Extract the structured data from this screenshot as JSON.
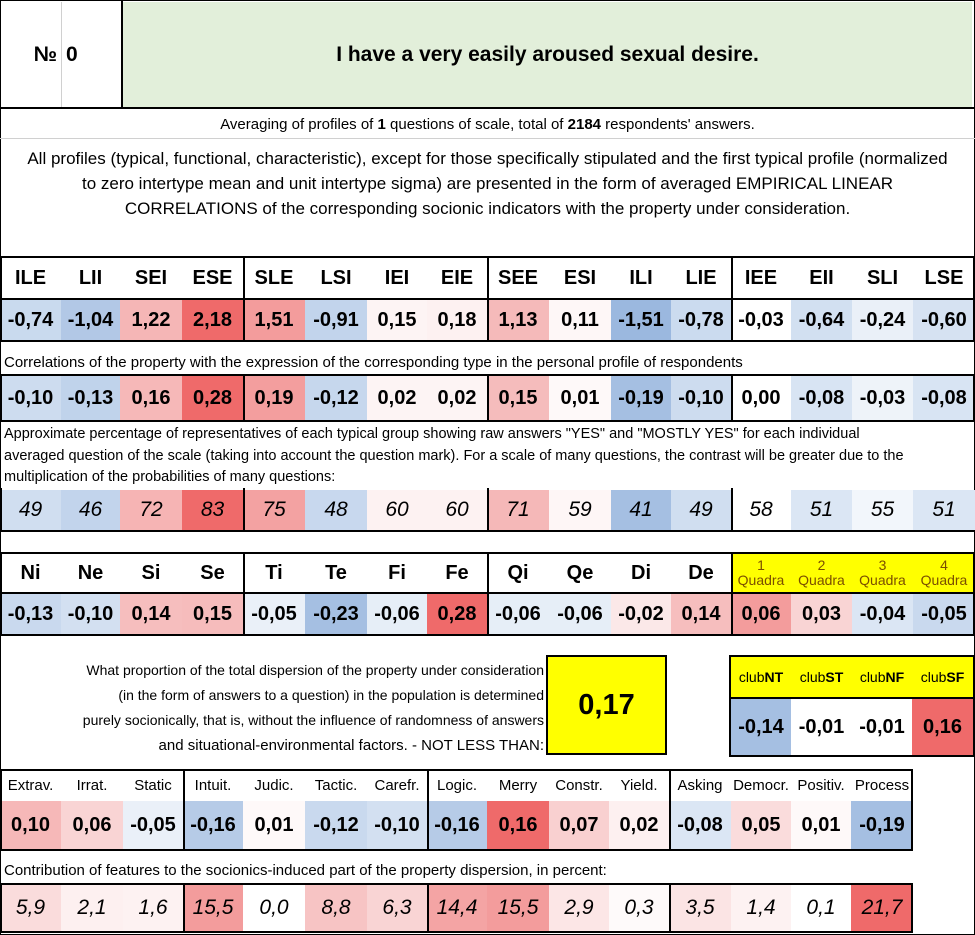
{
  "header": {
    "number_label": "№",
    "number_value": "0",
    "question": "I have a very easily aroused sexual desire."
  },
  "averaging": {
    "prefix": "Averaging of profiles of ",
    "count": "1",
    "middle": " questions of scale, total of ",
    "respondents": "2184",
    "suffix": " respondents' answers."
  },
  "intro_text": "All profiles (typical, functional, characteristic), except for those specifically stipulated and the first typical profile (normalized to zero intertype mean and unit intertype sigma) are presented in the form of averaged EMPIRICAL LINEAR CORRELATIONS of the corresponding socionic indicators with the property under consideration.",
  "types": {
    "headers": [
      "ILE",
      "LII",
      "SEI",
      "ESE",
      "SLE",
      "LSI",
      "IEI",
      "EIE",
      "SEE",
      "ESI",
      "ILI",
      "LIE",
      "IEE",
      "EII",
      "SLI",
      "LSE"
    ],
    "values": [
      "-0,74",
      "-1,04",
      "1,22",
      "2,18",
      "1,51",
      "-0,91",
      "0,15",
      "0,18",
      "1,13",
      "0,11",
      "-1,51",
      "-0,78",
      "-0,03",
      "-0,64",
      "-0,24",
      "-0,60"
    ],
    "colors": [
      "#c9daee",
      "#b2c8e6",
      "#f5b6b6",
      "#ef6a6a",
      "#f39c9c",
      "#c2d4ec",
      "#fdf4f4",
      "#fdf1f1",
      "#f5baba",
      "#fef7f7",
      "#9bb8df",
      "#cbdbef",
      "#ffffff",
      "#d2e0f1",
      "#eaf0f8",
      "#d6e2f2"
    ]
  },
  "correlations": {
    "note": "Correlations of the property with the expression of the corresponding type in the personal profile of respondents",
    "values": [
      "-0,10",
      "-0,13",
      "0,16",
      "0,28",
      "0,19",
      "-0,12",
      "0,02",
      "0,02",
      "0,15",
      "0,01",
      "-0,19",
      "-0,10",
      "0,00",
      "-0,08",
      "-0,03",
      "-0,08"
    ],
    "colors": [
      "#cddcef",
      "#c0d3eb",
      "#f6b8b8",
      "#ef6a6a",
      "#f39e9e",
      "#c6d7ed",
      "#fdf4f4",
      "#fdf4f4",
      "#f5bcbc",
      "#fef9f9",
      "#a5bfe2",
      "#cddcef",
      "#ffffff",
      "#d8e4f3",
      "#eef3f9",
      "#d8e4f3"
    ]
  },
  "percentage": {
    "note_line1": "Approximate percentage of representatives of each typical group showing raw answers \"YES\" and \"MOSTLY YES\" for each individual",
    "note_line2": "averaged question of the scale (taking into account the question mark). For a scale of many questions, the contrast will be greater due to the",
    "note_line3": "multiplication of the probabilities of many questions:",
    "values": [
      "49",
      "46",
      "72",
      "83",
      "75",
      "48",
      "60",
      "60",
      "71",
      "59",
      "41",
      "49",
      "58",
      "51",
      "55",
      "51"
    ],
    "colors": [
      "#d0def0",
      "#c2d4ec",
      "#f6b4b4",
      "#ef6a6a",
      "#f3a2a2",
      "#c8d8ee",
      "#fdf2f2",
      "#fdf2f2",
      "#f5b8b8",
      "#fef6f6",
      "#a5bfe2",
      "#d0def0",
      "#ffffff",
      "#dbe6f4",
      "#f2f6fb",
      "#dbe6f4"
    ]
  },
  "functions": {
    "headers": [
      "Ni",
      "Ne",
      "Si",
      "Se",
      "Ti",
      "Te",
      "Fi",
      "Fe",
      "Qi",
      "Qe",
      "Di",
      "De"
    ],
    "values": [
      "-0,13",
      "-0,10",
      "0,14",
      "0,15",
      "-0,05",
      "-0,23",
      "-0,06",
      "0,28",
      "-0,06",
      "-0,06",
      "-0,02",
      "0,14"
    ],
    "colors": [
      "#c9d9ee",
      "#d3e0f1",
      "#f6bebe",
      "#f6bcbc",
      "#eaf0f8",
      "#a5bfe2",
      "#e6eef7",
      "#ef6a6a",
      "#e6eef7",
      "#e6eef7",
      "#fbe8e8",
      "#f6bebe"
    ]
  },
  "quadras": {
    "numbers": [
      "1",
      "2",
      "3",
      "4"
    ],
    "label": "Quadra",
    "values": [
      "0,06",
      "0,03",
      "-0,04",
      "-0,05"
    ],
    "colors": [
      "#f39c9c",
      "#f9d4d4",
      "#dbe6f4",
      "#c9d9ee"
    ],
    "header_bg": "#ffff00"
  },
  "dispersion": {
    "line1": "What proportion of the total dispersion of the property under consideration",
    "line2": "(in the form of answers to a question) in the population is determined",
    "line3": "purely socionically, that is, without the influence of randomness of answers",
    "line4": "and situational-environmental factors. - NOT LESS THAN:",
    "value": "0,17",
    "value_bg": "#ffff00"
  },
  "clubs": {
    "prefix": "club",
    "names": [
      "NT",
      "ST",
      "NF",
      "SF"
    ],
    "values": [
      "-0,14",
      "-0,01",
      "-0,01",
      "0,16"
    ],
    "colors": [
      "#a5bfe2",
      "#ffffff",
      "#ffffff",
      "#ef6a6a"
    ],
    "header_bg": "#ffff00"
  },
  "traits": {
    "headers": [
      "Extrav.",
      "Irrat.",
      "Static",
      "Intuit.",
      "Judic.",
      "Tactic.",
      "Carefr.",
      "Logic.",
      "Merry",
      "Constr.",
      "Yield.",
      "Asking",
      "Democr.",
      "Positiv.",
      "Process"
    ],
    "values": [
      "0,10",
      "0,06",
      "-0,05",
      "-0,16",
      "0,01",
      "-0,12",
      "-0,10",
      "-0,16",
      "0,16",
      "0,07",
      "0,02",
      "-0,08",
      "0,05",
      "0,01",
      "-0,19"
    ],
    "colors": [
      "#f6b8b8",
      "#f9d4d4",
      "#eaf0f8",
      "#b6cbe7",
      "#fef9f9",
      "#c9d9ee",
      "#d3e0f1",
      "#b6cbe7",
      "#ef6a6a",
      "#f9d0d0",
      "#fdf0f0",
      "#dbe6f4",
      "#fadcdc",
      "#fef9f9",
      "#a5bfe2"
    ]
  },
  "contribution": {
    "note": "Contribution of features to the sociоnics-induced part of the property dispersion, in percent:",
    "values": [
      "5,9",
      "2,1",
      "1,6",
      "15,5",
      "0,0",
      "8,8",
      "6,3",
      "14,4",
      "15,5",
      "2,9",
      "0,3",
      "3,5",
      "1,4",
      "0,1",
      "21,7"
    ],
    "colors": [
      "#fadcdc",
      "#fdf0f0",
      "#fdf2f2",
      "#f39c9c",
      "#ffffff",
      "#f7c4c4",
      "#f9d4d4",
      "#f4a4a4",
      "#f39c9c",
      "#fce6e6",
      "#fefafa",
      "#fbe4e4",
      "#fdf2f2",
      "#ffffff",
      "#ef6a6a"
    ]
  },
  "colors": {
    "header_bg": "#e2efda",
    "grid": "#000000"
  }
}
